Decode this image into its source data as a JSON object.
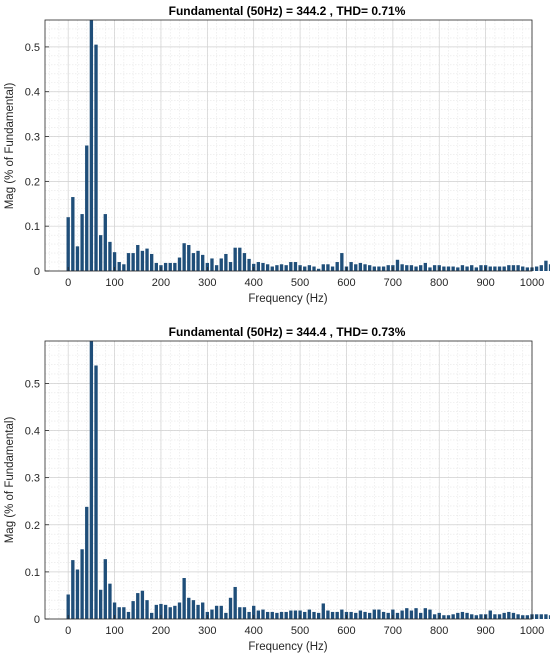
{
  "colors": {
    "bar": "#1f4e79",
    "axis": "#262626",
    "minor_grid": "#e6e6e6",
    "major_grid": "#d0d0d0"
  },
  "chart_data": [
    {
      "type": "bar",
      "title": "Fundamental (50Hz) = 344.2 , THD= 0.71%",
      "xlabel": "Frequency (Hz)",
      "ylabel": "Mag (% of Fundamental)",
      "xlim": [
        -50,
        1000
      ],
      "ylim": [
        0,
        0.56
      ],
      "xticks": [
        "0",
        "100",
        "200",
        "300",
        "400",
        "500",
        "600",
        "700",
        "800",
        "900",
        "1000"
      ],
      "yticks": [
        "0",
        "0.1",
        "0.2",
        "0.3",
        "0.4",
        "0.5"
      ],
      "grid": "major and minor",
      "x_step": 10,
      "values": [
        0.12,
        0.165,
        0.055,
        0.127,
        0.28,
        0.56,
        0.505,
        0.08,
        0.127,
        0.065,
        0.042,
        0.02,
        0.015,
        0.04,
        0.04,
        0.058,
        0.045,
        0.05,
        0.038,
        0.018,
        0.013,
        0.018,
        0.018,
        0.018,
        0.03,
        0.062,
        0.058,
        0.04,
        0.045,
        0.036,
        0.018,
        0.028,
        0.013,
        0.028,
        0.038,
        0.02,
        0.052,
        0.052,
        0.04,
        0.027,
        0.016,
        0.02,
        0.018,
        0.015,
        0.01,
        0.013,
        0.015,
        0.013,
        0.02,
        0.02,
        0.013,
        0.01,
        0.013,
        0.01,
        0.005,
        0.015,
        0.015,
        0.01,
        0.02,
        0.04,
        0.01,
        0.02,
        0.015,
        0.018,
        0.015,
        0.013,
        0.01,
        0.01,
        0.01,
        0.013,
        0.013,
        0.025,
        0.015,
        0.013,
        0.013,
        0.01,
        0.013,
        0.018,
        0.008,
        0.013,
        0.013,
        0.01,
        0.01,
        0.01,
        0.008,
        0.013,
        0.01,
        0.013,
        0.008,
        0.013,
        0.013,
        0.01,
        0.01,
        0.01,
        0.01,
        0.013,
        0.013,
        0.013,
        0.01,
        0.008,
        0.008,
        0.01,
        0.013,
        0.023,
        0.015,
        0.018,
        0.015,
        0.013,
        0.013,
        0.01,
        0.01,
        0.01,
        0.01,
        0.013,
        0.013,
        0.01,
        0.005,
        0.013,
        0.013,
        0.01,
        0.008,
        0.01,
        0.01,
        0.013,
        0.013,
        0.01,
        0.01,
        0.008,
        0.008,
        0.008,
        0.008,
        0.013,
        0.013,
        0.01,
        0.01,
        0.005
      ]
    },
    {
      "type": "bar",
      "title": "Fundamental (50Hz) = 344.4 , THD= 0.73%",
      "xlabel": "Frequency (Hz)",
      "ylabel": "Mag (% of Fundamental)",
      "xlim": [
        -50,
        1000
      ],
      "ylim": [
        0,
        0.59
      ],
      "xticks": [
        "0",
        "100",
        "200",
        "300",
        "400",
        "500",
        "600",
        "700",
        "800",
        "900",
        "1000"
      ],
      "yticks": [
        "0",
        "0.1",
        "0.2",
        "0.3",
        "0.4",
        "0.5"
      ],
      "grid": "major and minor",
      "x_step": 10,
      "values": [
        0.052,
        0.125,
        0.105,
        0.148,
        0.238,
        0.59,
        0.538,
        0.062,
        0.127,
        0.075,
        0.035,
        0.025,
        0.025,
        0.015,
        0.038,
        0.055,
        0.06,
        0.04,
        0.013,
        0.03,
        0.032,
        0.03,
        0.025,
        0.028,
        0.035,
        0.087,
        0.045,
        0.04,
        0.03,
        0.035,
        0.015,
        0.02,
        0.028,
        0.028,
        0.013,
        0.045,
        0.068,
        0.025,
        0.025,
        0.015,
        0.028,
        0.018,
        0.02,
        0.015,
        0.015,
        0.013,
        0.015,
        0.015,
        0.018,
        0.018,
        0.018,
        0.015,
        0.02,
        0.015,
        0.013,
        0.033,
        0.018,
        0.015,
        0.015,
        0.02,
        0.015,
        0.015,
        0.013,
        0.018,
        0.015,
        0.013,
        0.02,
        0.02,
        0.015,
        0.013,
        0.02,
        0.013,
        0.018,
        0.023,
        0.018,
        0.023,
        0.013,
        0.023,
        0.02,
        0.01,
        0.013,
        0.008,
        0.008,
        0.01,
        0.013,
        0.015,
        0.013,
        0.01,
        0.008,
        0.01,
        0.01,
        0.018,
        0.01,
        0.01,
        0.013,
        0.015,
        0.013,
        0.01,
        0.008,
        0.008,
        0.01,
        0.01,
        0.01,
        0.01,
        0.008,
        0.01,
        0.008,
        0.005,
        0.008,
        0.01,
        0.01,
        0.013,
        0.008,
        0.005,
        0.008,
        0.005,
        0.008,
        0.008,
        0.01,
        0.008,
        0.008,
        0.005,
        0.005,
        0.008,
        0.008,
        0.01,
        0.008,
        0.008,
        0.008,
        0.005,
        0.005,
        0.01,
        0.008,
        0.008,
        0.01,
        0.008,
        0.005,
        0.005,
        0.01,
        0.008,
        0.01,
        0.005,
        0.005,
        0.01,
        0.005
      ]
    }
  ]
}
